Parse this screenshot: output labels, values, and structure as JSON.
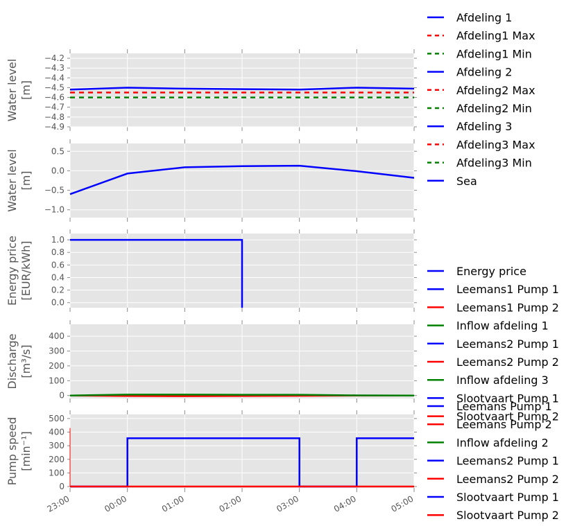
{
  "chart_data": [
    {
      "type": "line",
      "ylabel": [
        "Water level",
        "[m]"
      ],
      "ylim": [
        -4.9,
        -4.15
      ],
      "yticks": [
        -4.2,
        -4.3,
        -4.4,
        -4.5,
        -4.6,
        -4.7,
        -4.8,
        -4.9
      ],
      "ytick_labels": [
        "−4.2",
        "−4.3",
        "−4.4",
        "−4.5",
        "−4.6",
        "−4.7",
        "−4.8",
        "−4.9"
      ],
      "grid": true,
      "series": [
        {
          "name": "Afdeling 1",
          "color": "#0000ff",
          "dash": "solid",
          "x": [
            0,
            1,
            2,
            3,
            4,
            5,
            6
          ],
          "y": [
            -4.52,
            -4.5,
            -4.51,
            -4.515,
            -4.52,
            -4.5,
            -4.51
          ]
        },
        {
          "name": "Afdeling1 Max",
          "color": "#ff0000",
          "dash": "dashed",
          "x": [
            0,
            6
          ],
          "y": [
            -4.55,
            -4.55
          ]
        },
        {
          "name": "Afdeling1 Min",
          "color": "#008000",
          "dash": "dashed",
          "x": [
            0,
            6
          ],
          "y": [
            -4.6,
            -4.6
          ]
        }
      ]
    },
    {
      "type": "line",
      "ylabel": [
        "Water level",
        "[m]"
      ],
      "ylim": [
        -1.2,
        0.7
      ],
      "yticks": [
        0.5,
        0.0,
        -0.5,
        -1.0
      ],
      "ytick_labels": [
        "0.5",
        "0.0",
        "−0.5",
        "−1.0"
      ],
      "grid": true,
      "series": [
        {
          "name": "Sea",
          "color": "#0000ff",
          "dash": "solid",
          "x": [
            0,
            1,
            2,
            3,
            4,
            5,
            6
          ],
          "y": [
            -0.6,
            -0.07,
            0.09,
            0.12,
            0.13,
            -0.01,
            -0.18
          ]
        }
      ]
    },
    {
      "type": "line",
      "ylabel": [
        "Energy price",
        "[EUR/kWh]"
      ],
      "ylim": [
        -0.08,
        1.1
      ],
      "yticks": [
        1.0,
        0.8,
        0.6,
        0.4,
        0.2,
        0.0
      ],
      "ytick_labels": [
        "1.0",
        "0.8",
        "0.6",
        "0.4",
        "0.2",
        "0.0"
      ],
      "grid": true,
      "series": [
        {
          "name": "Energy price",
          "color": "#0000ff",
          "dash": "solid",
          "x": [
            0,
            3,
            3
          ],
          "y": [
            1.0,
            1.0,
            -0.08
          ]
        }
      ]
    },
    {
      "type": "line",
      "ylabel": [
        "Discharge",
        "[m³/s]"
      ],
      "ylim": [
        -20,
        480
      ],
      "yticks": [
        400,
        300,
        200,
        100,
        0
      ],
      "ytick_labels": [
        "400",
        "300",
        "200",
        "100",
        "0"
      ],
      "grid": true,
      "series": [
        {
          "name": "Leemans1 Pump 1",
          "color": "#0000ff",
          "dash": "solid",
          "x": [
            0,
            6
          ],
          "y": [
            0,
            0
          ]
        },
        {
          "name": "Leemans1 Pump 2",
          "color": "#ff0000",
          "dash": "solid",
          "x": [
            0,
            1,
            2,
            3,
            4,
            5,
            6
          ],
          "y": [
            0,
            -3,
            -4,
            -3,
            -2,
            0,
            0
          ]
        },
        {
          "name": "Inflow afdeling 1",
          "color": "#008000",
          "dash": "solid",
          "x": [
            0,
            1,
            2,
            3,
            4,
            5,
            6
          ],
          "y": [
            0,
            6,
            6,
            5,
            5,
            1,
            0
          ]
        }
      ]
    },
    {
      "type": "line",
      "ylabel": [
        "Pump speed",
        "[min⁻¹]"
      ],
      "ylim": [
        -10,
        530
      ],
      "yticks": [
        500,
        400,
        300,
        200,
        100,
        0
      ],
      "ytick_labels": [
        "500",
        "400",
        "300",
        "200",
        "100",
        "0"
      ],
      "grid": true,
      "xtick_labels": [
        "23:00",
        "00:00",
        "01:00",
        "02:00",
        "03:00",
        "04:00",
        "05:00"
      ],
      "series": [
        {
          "name": "Leemans Pump 1",
          "color": "#0000ff",
          "dash": "solid",
          "x": [
            0,
            1,
            1,
            4,
            4,
            5,
            5,
            6
          ],
          "y": [
            0,
            0,
            355,
            355,
            0,
            0,
            355,
            355
          ]
        },
        {
          "name": "Leemans Pump 2",
          "color": "#ff0000",
          "dash": "solid",
          "x": [
            0,
            6
          ],
          "y": [
            0,
            0
          ]
        },
        {
          "name": "Leemans Pump 2 start",
          "color": "#ff0000",
          "dash": "solid",
          "x": [
            0,
            0
          ],
          "y": [
            430,
            0
          ]
        }
      ]
    }
  ],
  "legends": [
    {
      "entries": [
        {
          "label": "Afdeling 1",
          "color": "#0000ff",
          "dash": "solid"
        },
        {
          "label": "Afdeling1 Max",
          "color": "#ff0000",
          "dash": "dashed"
        },
        {
          "label": "Afdeling1 Min",
          "color": "#008000",
          "dash": "dashed"
        },
        {
          "label": "Afdeling 2",
          "color": "#0000ff",
          "dash": "solid"
        },
        {
          "label": "Afdeling2 Max",
          "color": "#ff0000",
          "dash": "dashed"
        },
        {
          "label": "Afdeling2 Min",
          "color": "#008000",
          "dash": "dashed"
        },
        {
          "label": "Afdeling 3",
          "color": "#0000ff",
          "dash": "solid"
        },
        {
          "label": "Afdeling3 Max",
          "color": "#ff0000",
          "dash": "dashed"
        },
        {
          "label": "Afdeling3 Min",
          "color": "#008000",
          "dash": "dashed"
        },
        {
          "label": "Sea",
          "color": "#0000ff",
          "dash": "solid"
        }
      ]
    },
    {
      "entries": [
        {
          "label": "Energy price",
          "color": "#0000ff",
          "dash": "solid"
        },
        {
          "label": "Leemans1 Pump 1",
          "color": "#0000ff",
          "dash": "solid"
        },
        {
          "label": "Leemans1 Pump 2",
          "color": "#ff0000",
          "dash": "solid"
        },
        {
          "label": "Inflow afdeling 1",
          "color": "#008000",
          "dash": "solid"
        },
        {
          "label": "Leemans2 Pump 1",
          "color": "#0000ff",
          "dash": "solid"
        },
        {
          "label": "Leemans2 Pump 2",
          "color": "#ff0000",
          "dash": "solid"
        },
        {
          "label": "Inflow afdeling 3",
          "color": "#008000",
          "dash": "solid"
        },
        {
          "label": "Slootvaart Pump 1",
          "color": "#0000ff",
          "dash": "solid"
        },
        {
          "label": "Slootvaart Pump 2",
          "color": "#ff0000",
          "dash": "solid"
        }
      ]
    },
    {
      "entries": [
        {
          "label": "Leemans Pump 1",
          "color": "#0000ff",
          "dash": "solid"
        },
        {
          "label": "Leemans Pump 2",
          "color": "#ff0000",
          "dash": "solid"
        },
        {
          "label": "Inflow afdeling 2",
          "color": "#008000",
          "dash": "solid"
        },
        {
          "label": "Leemans2 Pump 1",
          "color": "#0000ff",
          "dash": "solid"
        },
        {
          "label": "Leemans2 Pump 2",
          "color": "#ff0000",
          "dash": "solid"
        },
        {
          "label": "Slootvaart Pump 1",
          "color": "#0000ff",
          "dash": "solid"
        },
        {
          "label": "Slootvaart Pump 2",
          "color": "#ff0000",
          "dash": "solid"
        }
      ]
    }
  ],
  "colors": {
    "axes_bg": "#e5e5e5",
    "grid": "#ffffff",
    "text": "#555555"
  }
}
